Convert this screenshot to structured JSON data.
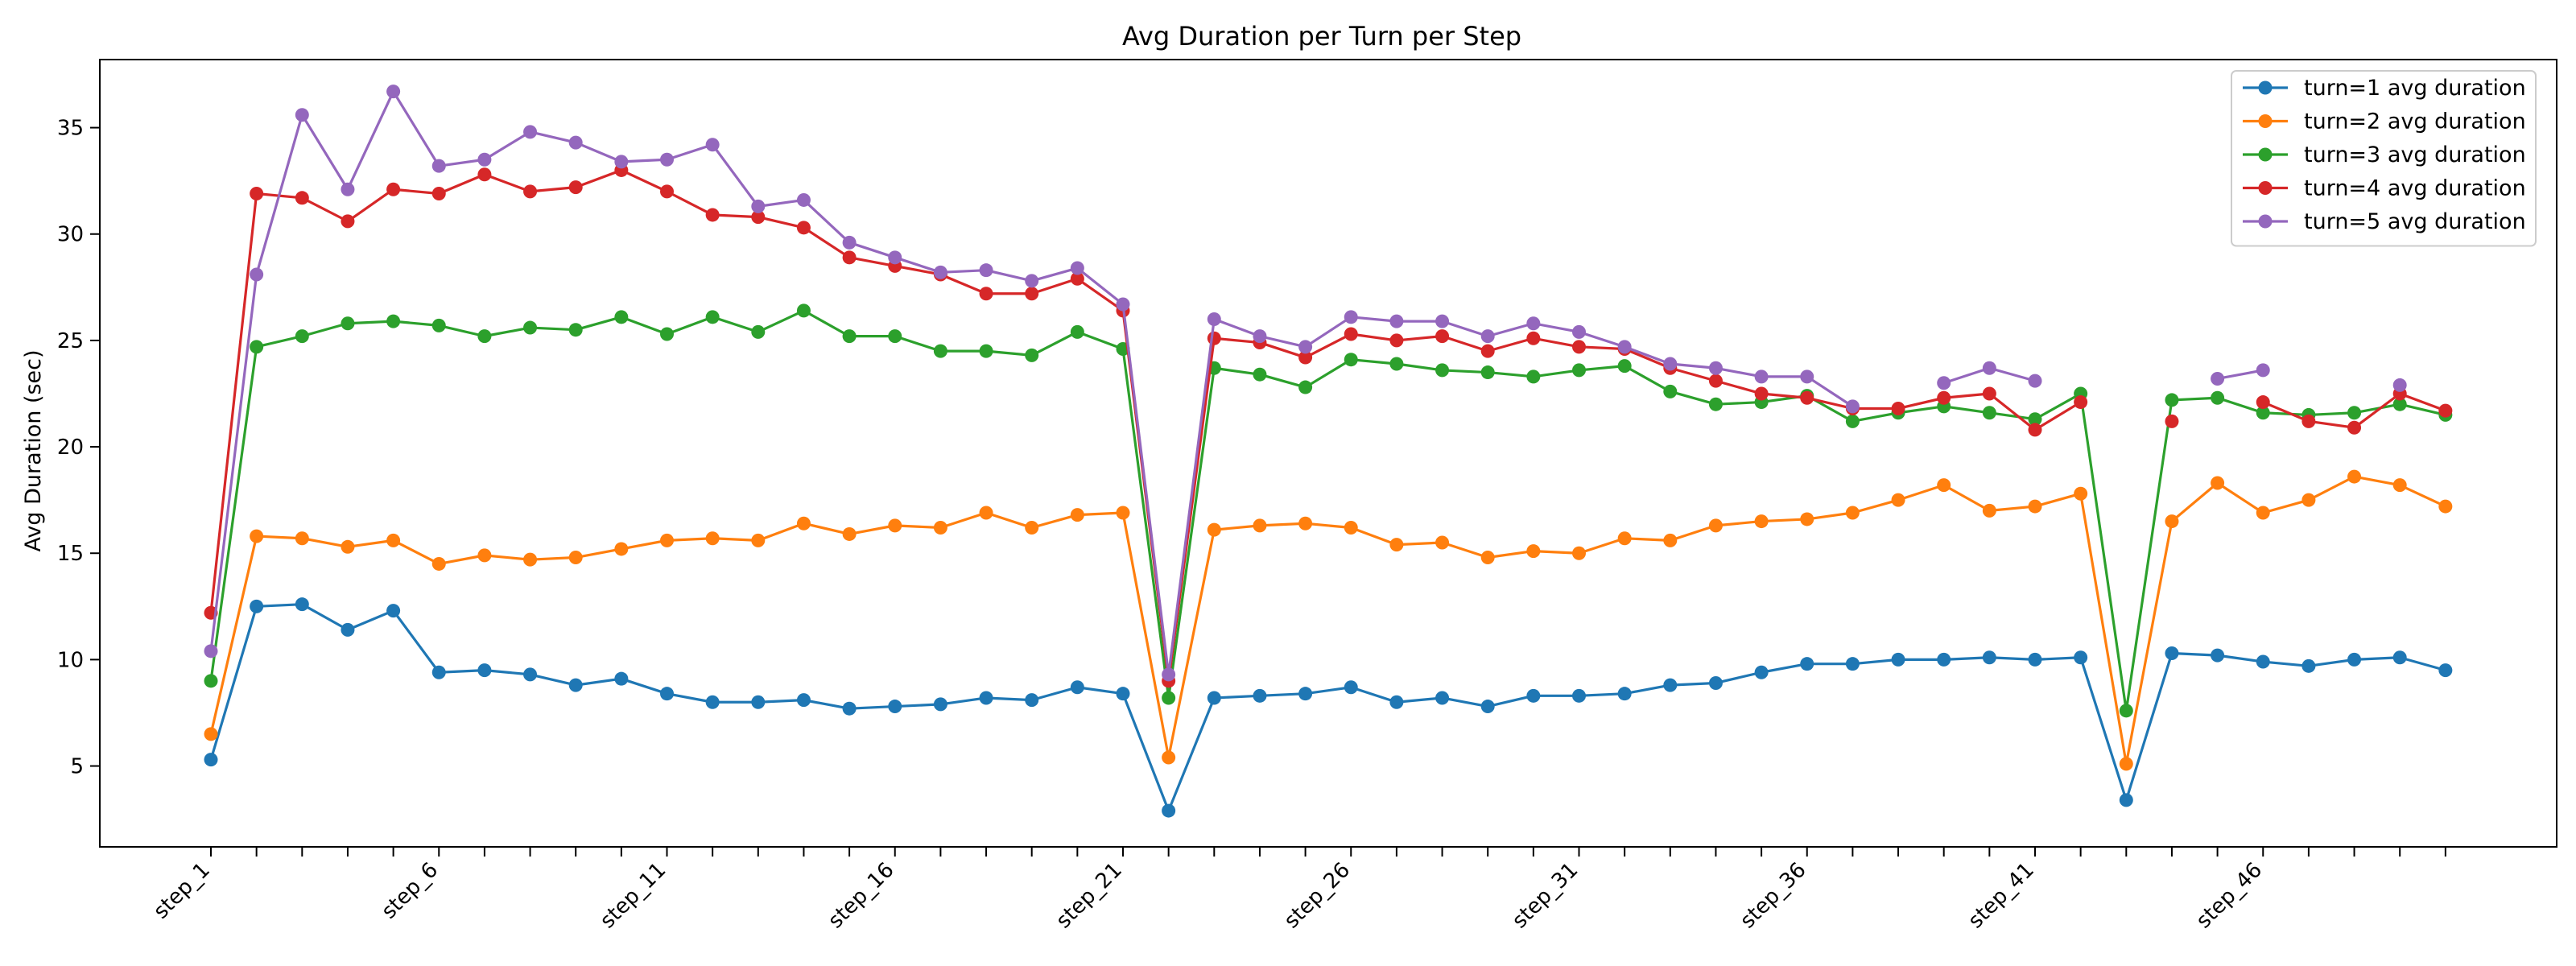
{
  "chart_data": {
    "type": "line",
    "title": "Avg Duration per Turn per Step",
    "xlabel": "",
    "ylabel": "Avg Duration (sec)",
    "ylim": [
      1.2,
      38.2
    ],
    "yticks": [
      5,
      10,
      15,
      20,
      25,
      30,
      35
    ],
    "x": [
      "step_1",
      "step_2",
      "step_3",
      "step_4",
      "step_5",
      "step_6",
      "step_7",
      "step_8",
      "step_9",
      "step_10",
      "step_11",
      "step_12",
      "step_13",
      "step_14",
      "step_15",
      "step_16",
      "step_17",
      "step_18",
      "step_19",
      "step_20",
      "step_21",
      "step_22",
      "step_23",
      "step_24",
      "step_25",
      "step_26",
      "step_27",
      "step_28",
      "step_29",
      "step_30",
      "step_31",
      "step_32",
      "step_33",
      "step_34",
      "step_35",
      "step_36",
      "step_37",
      "step_38",
      "step_39",
      "step_40",
      "step_41",
      "step_42",
      "step_43",
      "step_44",
      "step_45",
      "step_46",
      "step_47",
      "step_48",
      "step_49",
      "step_50"
    ],
    "xtick_labels_shown": [
      "step_1",
      "step_6",
      "step_11",
      "step_16",
      "step_21",
      "step_26",
      "step_31",
      "step_36",
      "step_41",
      "step_46"
    ],
    "grid": false,
    "legend_position": "top-right",
    "series": [
      {
        "name": "turn=1 avg duration",
        "color": "#1f77b4",
        "values": [
          5.3,
          12.5,
          12.6,
          11.4,
          12.3,
          9.4,
          9.5,
          9.3,
          8.8,
          9.1,
          8.4,
          8.0,
          8.0,
          8.1,
          7.7,
          7.8,
          7.9,
          8.2,
          8.1,
          8.7,
          8.4,
          2.9,
          8.2,
          8.3,
          8.4,
          8.7,
          8.0,
          8.2,
          7.8,
          8.3,
          8.3,
          8.4,
          8.8,
          8.9,
          9.4,
          9.8,
          9.8,
          10.0,
          10.0,
          10.1,
          10.0,
          10.1,
          3.4,
          10.3,
          10.2,
          9.9,
          9.7,
          10.0,
          10.1,
          9.5
        ]
      },
      {
        "name": "turn=2 avg duration",
        "color": "#ff7f0e",
        "values": [
          6.5,
          15.8,
          15.7,
          15.3,
          15.6,
          14.5,
          14.9,
          14.7,
          14.8,
          15.2,
          15.6,
          15.7,
          15.6,
          16.4,
          15.9,
          16.3,
          16.2,
          16.9,
          16.2,
          16.8,
          16.9,
          5.4,
          16.1,
          16.3,
          16.4,
          16.2,
          15.4,
          15.5,
          14.8,
          15.1,
          15.0,
          15.7,
          15.6,
          16.3,
          16.5,
          16.6,
          16.9,
          17.5,
          18.2,
          17.0,
          17.2,
          17.8,
          5.1,
          16.5,
          18.3,
          16.9,
          17.5,
          18.6,
          18.2,
          17.2
        ]
      },
      {
        "name": "turn=3 avg duration",
        "color": "#2ca02c",
        "values": [
          9.0,
          24.7,
          25.2,
          25.8,
          25.9,
          25.7,
          25.2,
          25.6,
          25.5,
          26.1,
          25.3,
          26.1,
          25.4,
          26.4,
          25.2,
          25.2,
          24.5,
          24.5,
          24.3,
          25.4,
          24.6,
          8.2,
          23.7,
          23.4,
          22.8,
          24.1,
          23.9,
          23.6,
          23.5,
          23.3,
          23.6,
          23.8,
          22.6,
          22.0,
          22.1,
          22.4,
          21.2,
          21.6,
          21.9,
          21.6,
          21.3,
          22.5,
          7.6,
          22.2,
          22.3,
          21.6,
          21.5,
          21.6,
          22.0,
          21.5
        ]
      },
      {
        "name": "turn=4 avg duration",
        "color": "#d62728",
        "values": [
          12.2,
          31.9,
          31.7,
          30.6,
          32.1,
          31.9,
          32.8,
          32.0,
          32.2,
          33.0,
          32.0,
          30.9,
          30.8,
          30.3,
          28.9,
          28.5,
          28.1,
          27.2,
          27.2,
          27.9,
          26.4,
          9.0,
          25.1,
          24.9,
          24.2,
          25.3,
          25.0,
          25.2,
          24.5,
          25.1,
          24.7,
          24.6,
          23.7,
          23.1,
          22.5,
          22.3,
          21.8,
          21.8,
          22.3,
          22.5,
          20.8,
          22.1,
          null,
          21.2,
          null,
          22.1,
          21.2,
          20.9,
          22.5,
          21.7
        ]
      },
      {
        "name": "turn=5 avg duration",
        "color": "#9467bd",
        "values": [
          10.4,
          28.1,
          35.6,
          32.1,
          36.7,
          33.2,
          33.5,
          34.8,
          34.3,
          33.4,
          33.5,
          34.2,
          31.3,
          31.6,
          29.6,
          28.9,
          28.2,
          28.3,
          27.8,
          28.4,
          26.7,
          9.3,
          26.0,
          25.2,
          24.7,
          26.1,
          25.9,
          25.9,
          25.2,
          25.8,
          25.4,
          24.7,
          23.9,
          23.7,
          23.3,
          23.3,
          21.9,
          null,
          23.0,
          23.7,
          23.1,
          null,
          null,
          null,
          23.2,
          23.6,
          null,
          null,
          22.9,
          null
        ]
      }
    ]
  }
}
